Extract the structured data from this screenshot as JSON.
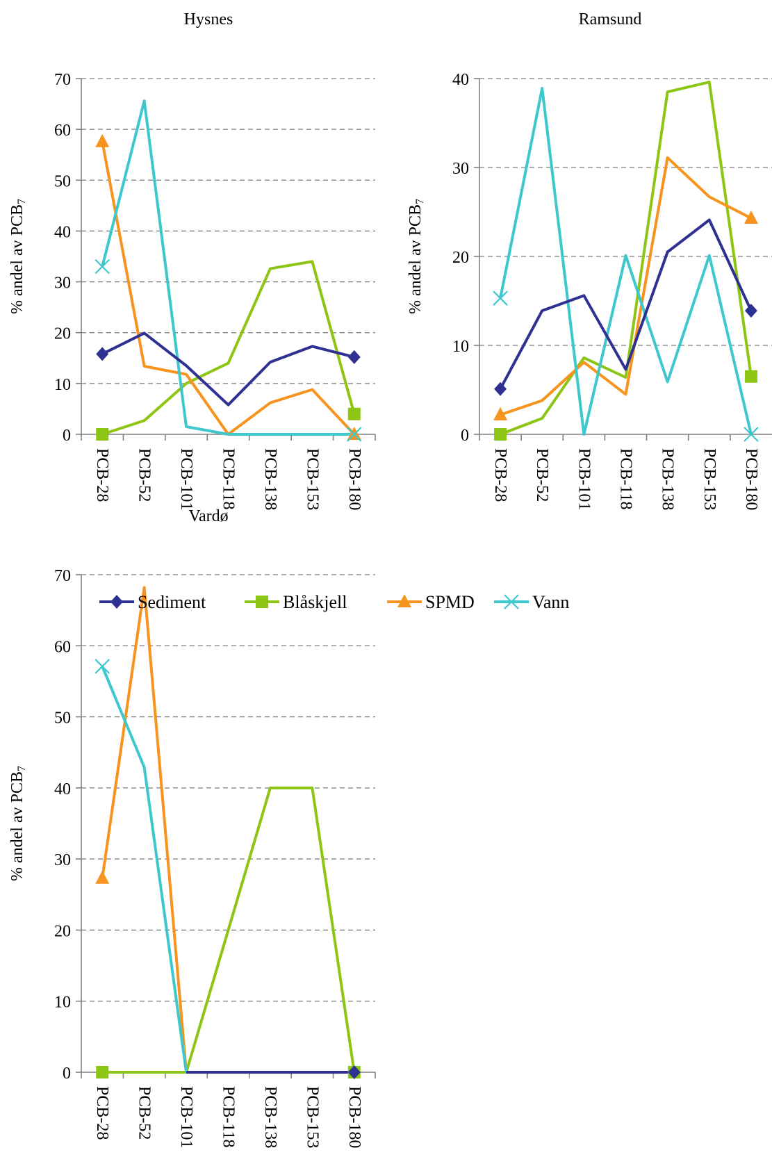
{
  "colors": {
    "Sediment": "#2e3192",
    "Blåskjell": "#8dc514",
    "SPMD": "#f7941d",
    "Vann": "#3ec8cd"
  },
  "legend": [
    {
      "name": "Sediment",
      "marker": "diamond"
    },
    {
      "name": "Blåskjell",
      "marker": "square"
    },
    {
      "name": "SPMD",
      "marker": "triangle"
    },
    {
      "name": "Vann",
      "marker": "x"
    }
  ],
  "chart_data": [
    {
      "type": "line",
      "title": "Hysnes",
      "ylabel": "% andel av PCB",
      "ylabel_sub": "7",
      "categories": [
        "PCB-28",
        "PCB-52",
        "PCB-101",
        "PCB-118",
        "PCB-138",
        "PCB-153",
        "PCB-180"
      ],
      "ylim": [
        0,
        70
      ],
      "yticks": [
        0,
        10,
        20,
        30,
        40,
        50,
        60,
        70
      ],
      "grid": true,
      "series": [
        {
          "name": "Sediment",
          "values": [
            15.8,
            19.9,
            13.5,
            5.8,
            14.2,
            17.3,
            15.2
          ]
        },
        {
          "name": "Blåskjell",
          "values": [
            0,
            2.7,
            10.0,
            14.0,
            32.6,
            34.0,
            4.0
          ]
        },
        {
          "name": "SPMD",
          "values": [
            57.6,
            13.4,
            11.8,
            0,
            6.2,
            8.8,
            0
          ]
        },
        {
          "name": "Vann",
          "values": [
            33.0,
            65.6,
            1.5,
            0,
            0,
            0,
            0
          ]
        }
      ]
    },
    {
      "type": "line",
      "title": "Ramsund",
      "ylabel": "% andel av PCB",
      "ylabel_sub": "7",
      "categories": [
        "PCB-28",
        "PCB-52",
        "PCB-101",
        "PCB-118",
        "PCB-138",
        "PCB-153",
        "PCB-180"
      ],
      "ylim": [
        0,
        40
      ],
      "yticks": [
        0,
        10,
        20,
        30,
        40
      ],
      "grid": true,
      "series": [
        {
          "name": "Sediment",
          "values": [
            5.1,
            13.9,
            15.6,
            7.3,
            20.5,
            24.1,
            13.9
          ]
        },
        {
          "name": "Blåskjell",
          "values": [
            0,
            1.8,
            8.6,
            6.4,
            38.5,
            39.6,
            6.5
          ]
        },
        {
          "name": "SPMD",
          "values": [
            2.2,
            3.8,
            8.1,
            4.5,
            31.1,
            26.7,
            24.3
          ]
        },
        {
          "name": "Vann",
          "values": [
            15.3,
            38.9,
            0,
            20.1,
            5.9,
            20.1,
            0
          ]
        }
      ]
    },
    {
      "type": "line",
      "title": "Vardø",
      "ylabel": "% andel av PCB",
      "ylabel_sub": "7",
      "categories": [
        "PCB-28",
        "PCB-52",
        "PCB-101",
        "PCB-118",
        "PCB-138",
        "PCB-153",
        "PCB-180"
      ],
      "ylim": [
        0,
        70
      ],
      "yticks": [
        0,
        10,
        20,
        30,
        40,
        50,
        60,
        70
      ],
      "grid": true,
      "series": [
        {
          "name": "Sediment",
          "values": [
            null,
            null,
            0,
            0,
            0,
            0,
            0
          ]
        },
        {
          "name": "Blåskjell",
          "values": [
            0,
            0,
            0,
            20,
            40,
            40,
            0
          ]
        },
        {
          "name": "SPMD",
          "values": [
            27.3,
            68.2,
            0,
            null,
            null,
            null,
            null
          ]
        },
        {
          "name": "Vann",
          "values": [
            57.1,
            42.9,
            0,
            null,
            null,
            null,
            null
          ]
        }
      ]
    }
  ]
}
